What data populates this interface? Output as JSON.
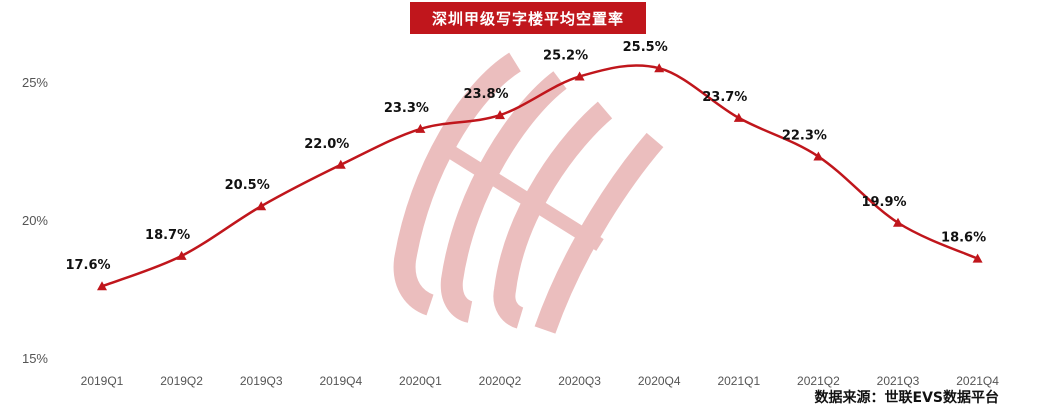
{
  "chart_data": {
    "type": "line",
    "title": "深圳甲级写字楼平均空置率",
    "categories": [
      "2019Q1",
      "2019Q2",
      "2019Q3",
      "2019Q4",
      "2020Q1",
      "2020Q2",
      "2020Q3",
      "2020Q4",
      "2021Q1",
      "2021Q2",
      "2021Q3",
      "2021Q4"
    ],
    "series": [
      {
        "values": [
          17.6,
          18.7,
          20.5,
          22.0,
          23.3,
          23.8,
          25.2,
          25.5,
          23.7,
          22.3,
          19.9,
          18.6
        ]
      }
    ],
    "data_labels": [
      "17.6%",
      "18.7%",
      "20.5%",
      "22.0%",
      "23.3%",
      "23.8%",
      "25.2%",
      "25.5%",
      "23.7%",
      "22.3%",
      "19.9%",
      "18.6%"
    ],
    "y_ticks": [
      15,
      20,
      25
    ],
    "y_tick_labels": [
      "15%",
      "20%",
      "25%"
    ],
    "ylim": [
      15,
      25.9
    ],
    "grid": false,
    "legend": "none",
    "line_color": "#c0161c",
    "marker": "triangle"
  },
  "source": "数据来源：世联EVS数据平台"
}
